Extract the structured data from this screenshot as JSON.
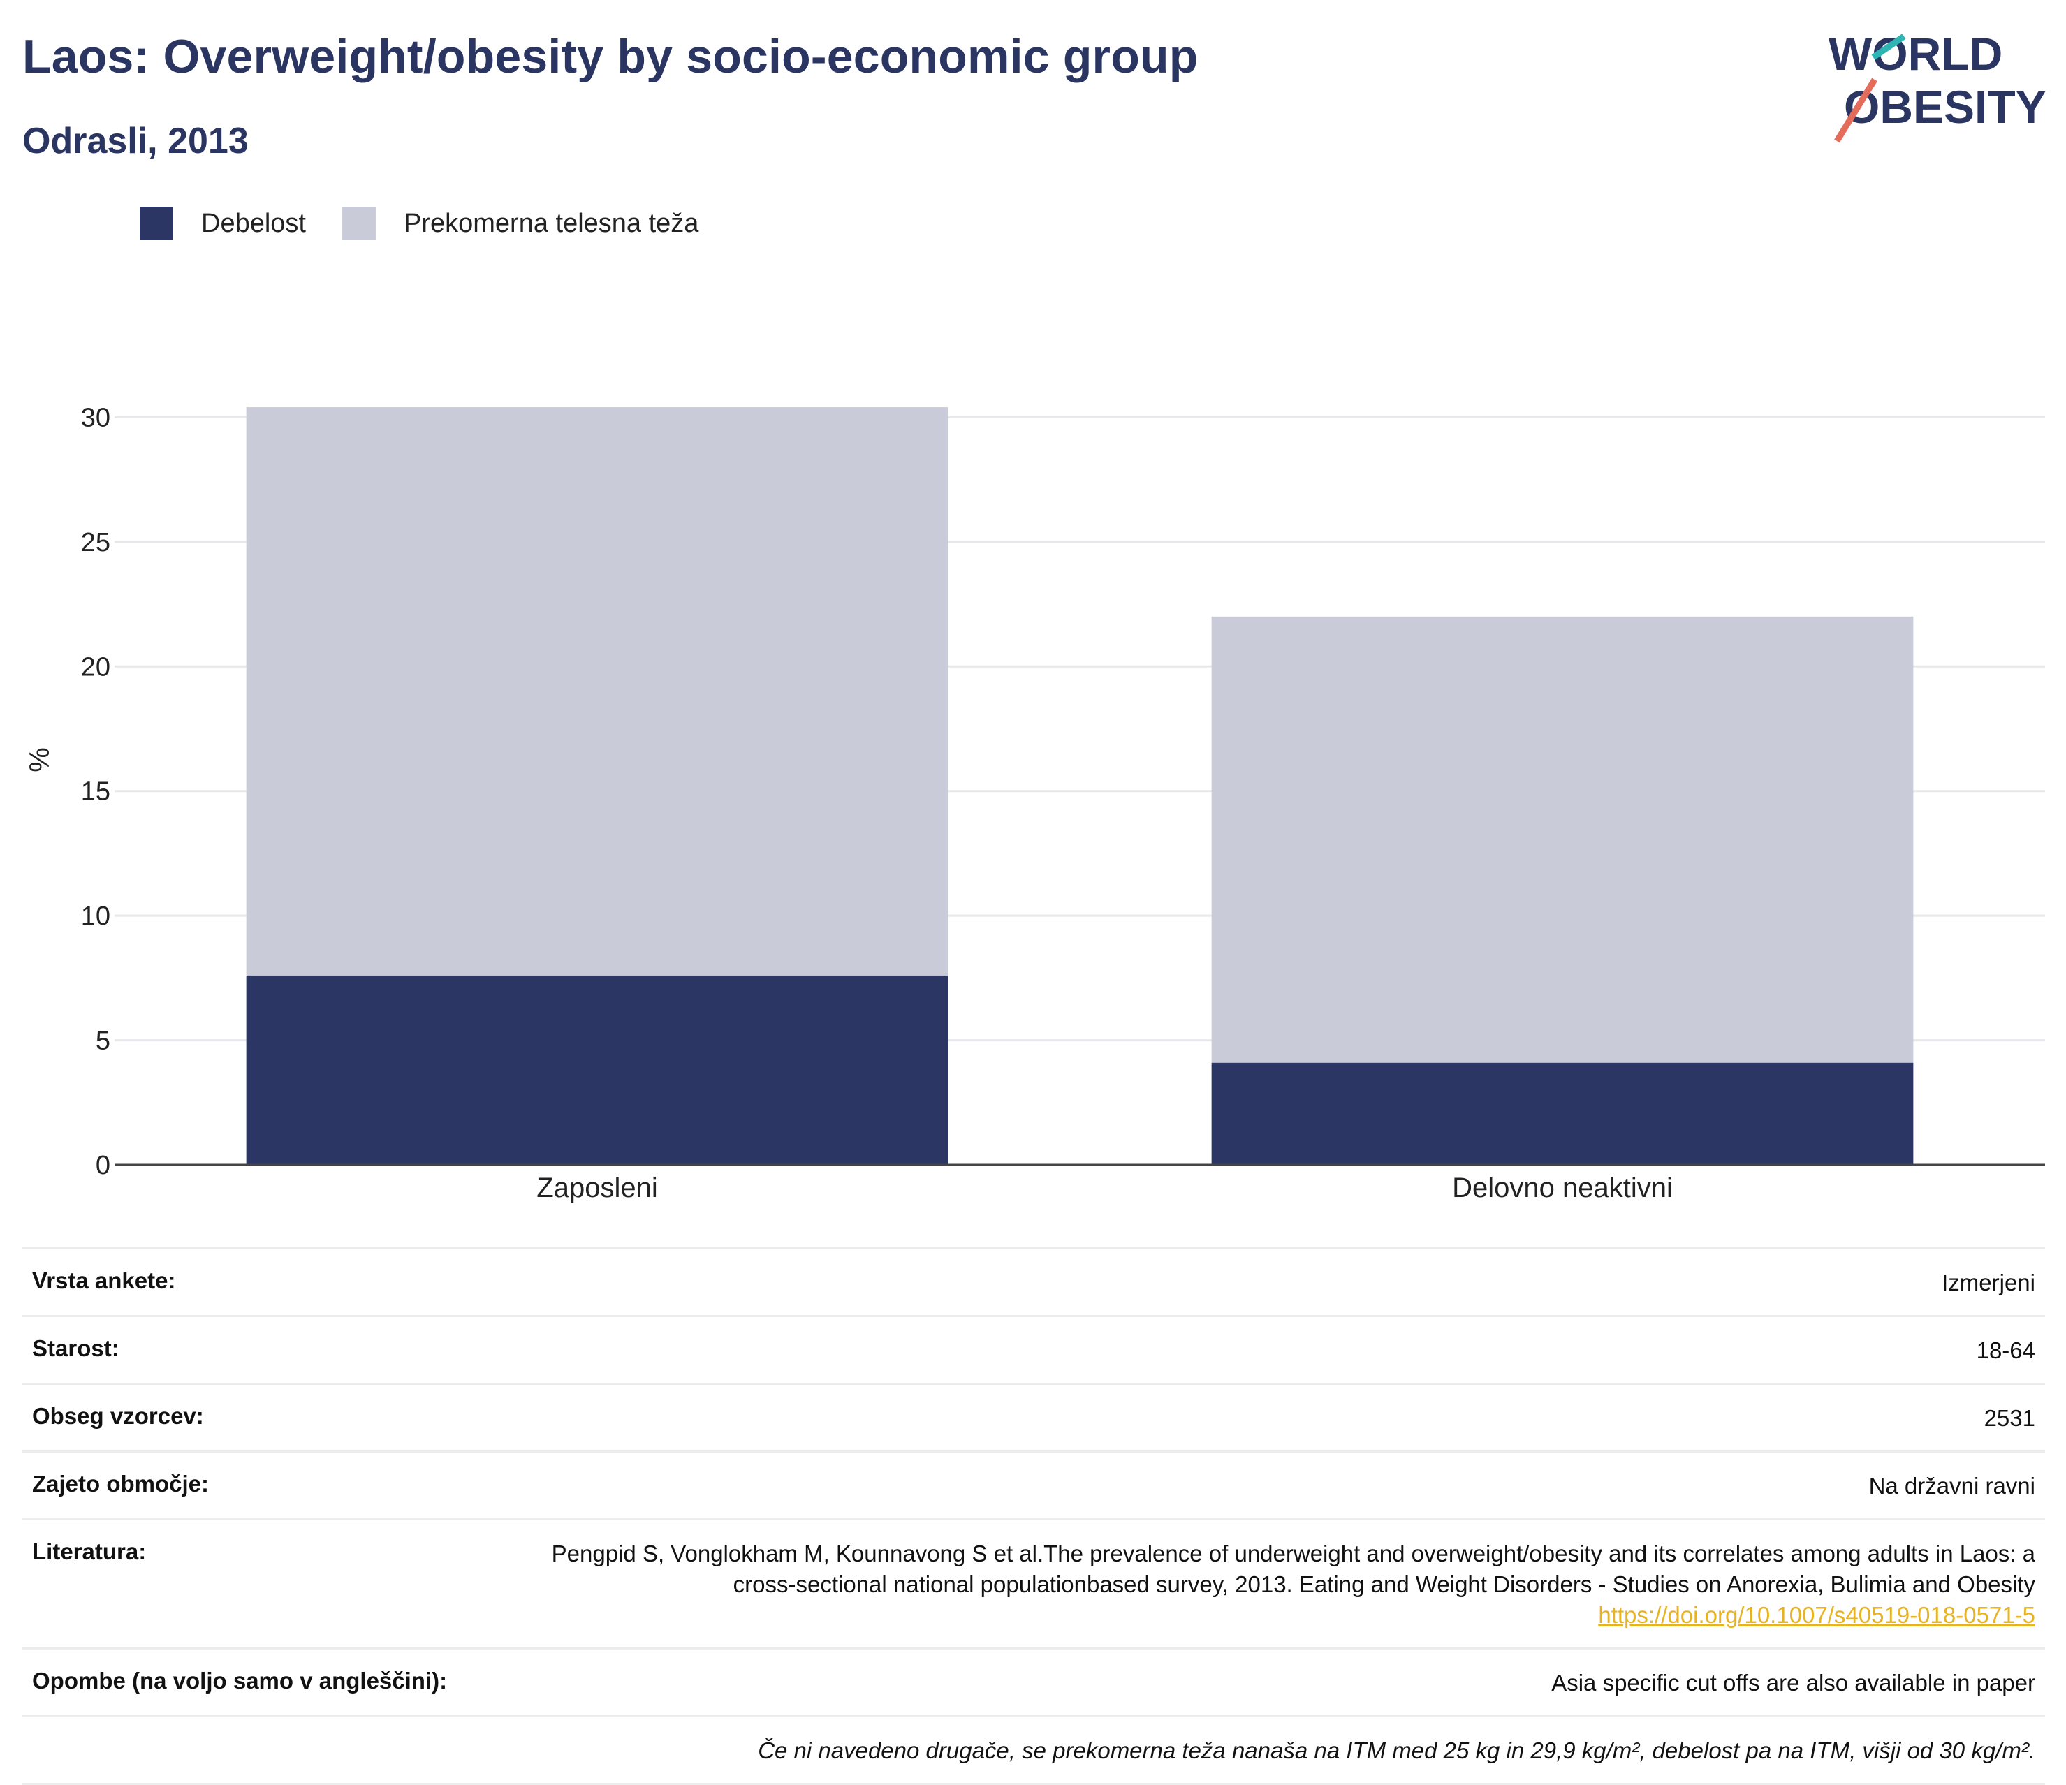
{
  "header": {
    "title": "Laos: Overweight/obesity by socio-economic group",
    "subtitle": "Odrasli, 2013"
  },
  "logo": {
    "line1": "WORLD",
    "line2": "OBESITY"
  },
  "colors": {
    "obesity": "#2b3664",
    "overweight": "#c9ccd8",
    "title": "#2b3562",
    "link": "#e8b321"
  },
  "legend": [
    {
      "label": "Debelost",
      "color": "#2b3664"
    },
    {
      "label": "Prekomerna telesna teža",
      "color": "#c9ccd8"
    }
  ],
  "chart_data": {
    "type": "bar",
    "stacked": true,
    "categories": [
      "Zaposleni",
      "Delovno neaktivni"
    ],
    "series": [
      {
        "name": "Debelost",
        "values": [
          7.6,
          4.1
        ]
      },
      {
        "name": "Prekomerna telesna teža",
        "values": [
          22.8,
          17.9
        ]
      }
    ],
    "ylabel": "%",
    "ylim": [
      0,
      32
    ],
    "yticks": [
      0,
      5,
      10,
      15,
      20,
      25,
      30
    ],
    "grid": true,
    "legend_position": "top-left"
  },
  "meta": {
    "rows": [
      {
        "key": "Vrsta ankete:",
        "value": "Izmerjeni"
      },
      {
        "key": "Starost:",
        "value": "18-64"
      },
      {
        "key": "Obseg vzorcev:",
        "value": "2531"
      },
      {
        "key": "Zajeto območje:",
        "value": "Na državni ravni"
      }
    ],
    "literature_key": "Literatura:",
    "literature_text": "Pengpid S, Vonglokham M, Kounnavong S et al.The prevalence of underweight and overweight/obesity and its correlates among adults in Laos: a cross-sectional national populationbased survey, 2013. Eating and Weight Disorders - Studies on Anorexia, Bulimia and Obesity",
    "literature_link": "https://doi.org/10.1007/s40519-018-0571-5",
    "notes_key": "Opombe (na voljo samo v angleščini):",
    "notes_value": "Asia specific cut offs are also available in paper",
    "footnote": "Če ni navedeno drugače, se prekomerna teža nanaša na ITM med 25 kg in 29,9 kg/m², debelost pa na ITM, višji od 30 kg/m²."
  }
}
